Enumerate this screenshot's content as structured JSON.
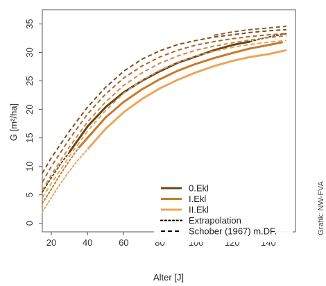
{
  "chart_data": {
    "type": "line",
    "xlabel": "Alter [J]",
    "ylabel": "G [m²/ha]",
    "xlim": [
      15,
      155
    ],
    "ylim": [
      -1.5,
      37.5
    ],
    "xticks": [
      20,
      40,
      60,
      80,
      100,
      120,
      140
    ],
    "yticks": [
      0,
      5,
      10,
      15,
      20,
      25,
      30,
      35
    ],
    "grid": false,
    "legend_position": "bottom-right",
    "credit": "Grafik: NW-FVA",
    "legend": [
      {
        "label": "0.Ekl",
        "style": "solid",
        "color": "#6b4515"
      },
      {
        "label": "I.Ekl",
        "style": "solid",
        "color": "#c87a2a"
      },
      {
        "label": "II.Ekl",
        "style": "solid",
        "color": "#eea55a"
      },
      {
        "label": "Extrapolation",
        "style": "dotted",
        "color": "#000000"
      },
      {
        "label": "Schober (1967) m.DF.",
        "style": "dashed",
        "color": "#000000"
      }
    ],
    "series": [
      {
        "name": "0.Ekl",
        "style": "solid",
        "color": "#6b4515",
        "x": [
          30,
          40,
          50,
          60,
          70,
          80,
          90,
          100,
          110,
          120,
          130
        ],
        "y": [
          12.5,
          17.0,
          20.4,
          23.0,
          25.0,
          26.7,
          28.2,
          29.3,
          30.4,
          31.3,
          31.9
        ]
      },
      {
        "name": "0.Ekl",
        "style": "dotted",
        "color": "#6b4515",
        "x": [
          15,
          20,
          25,
          30
        ],
        "y": [
          5.5,
          8.0,
          10.4,
          12.5
        ]
      },
      {
        "name": "0.Ekl",
        "style": "dotted",
        "color": "#6b4515",
        "x": [
          130,
          140,
          150
        ],
        "y": [
          31.9,
          32.7,
          33.3
        ]
      },
      {
        "name": "I.Ekl",
        "style": "solid",
        "color": "#c87a2a",
        "x": [
          35,
          40,
          50,
          60,
          70,
          80,
          90,
          100,
          110,
          120,
          130,
          140,
          148
        ],
        "y": [
          13.2,
          15.0,
          18.6,
          21.3,
          23.5,
          25.3,
          26.8,
          28.0,
          29.0,
          29.9,
          30.7,
          31.3,
          31.8
        ]
      },
      {
        "name": "I.Ekl",
        "style": "dotted",
        "color": "#c87a2a",
        "x": [
          15,
          20,
          25,
          30,
          35
        ],
        "y": [
          3.5,
          6.0,
          8.6,
          11.0,
          13.2
        ]
      },
      {
        "name": "II.Ekl",
        "style": "solid",
        "color": "#eea55a",
        "x": [
          40,
          50,
          60,
          70,
          80,
          90,
          100,
          110,
          120,
          130,
          140,
          150
        ],
        "y": [
          13.0,
          16.6,
          19.5,
          21.8,
          23.7,
          25.2,
          26.5,
          27.6,
          28.5,
          29.2,
          29.7,
          30.4
        ]
      },
      {
        "name": "II.Ekl",
        "style": "dotted",
        "color": "#eea55a",
        "x": [
          15,
          20,
          25,
          30,
          35,
          40
        ],
        "y": [
          2.0,
          4.5,
          7.0,
          9.2,
          11.2,
          13.0
        ]
      },
      {
        "name": "Schober (1967) m.DF.",
        "style": "dashed",
        "color": "#7a5020",
        "x": [
          15,
          20,
          30,
          40,
          50,
          60,
          70,
          80,
          90,
          100,
          110,
          120,
          130,
          140,
          150
        ],
        "y": [
          8.8,
          11.5,
          16.2,
          20.4,
          23.9,
          26.7,
          28.8,
          30.3,
          31.4,
          32.1,
          32.7,
          33.1,
          33.5,
          33.8,
          34.0
        ]
      },
      {
        "name": "Schober (1967) m.DF.",
        "style": "dashed",
        "color": "#a06a30",
        "x": [
          15,
          20,
          30,
          40,
          50,
          60,
          70,
          80,
          90,
          100,
          110,
          120,
          130,
          140,
          150
        ],
        "y": [
          7.2,
          10.0,
          14.8,
          19.2,
          22.7,
          25.5,
          27.6,
          29.2,
          30.4,
          31.3,
          31.9,
          32.4,
          32.8,
          33.1,
          33.3
        ]
      },
      {
        "name": "Schober (1967) m.DF.",
        "style": "dashed",
        "color": "#c98a45",
        "x": [
          15,
          20,
          30,
          40,
          50,
          60,
          70,
          80,
          90,
          100,
          110,
          120,
          130,
          140,
          150
        ],
        "y": [
          5.8,
          8.5,
          13.4,
          17.8,
          21.3,
          24.2,
          26.4,
          28.1,
          29.4,
          30.4,
          31.1,
          31.7,
          32.2,
          32.6,
          32.9
        ]
      },
      {
        "name": "Schober (1967) m.DF.",
        "style": "dashed",
        "color": "#e0a565",
        "x": [
          15,
          20,
          30,
          40,
          50,
          60,
          70,
          80,
          90,
          100,
          110,
          120,
          130,
          140,
          150
        ],
        "y": [
          4.5,
          7.0,
          11.8,
          16.2,
          19.8,
          22.8,
          25.1,
          26.9,
          28.3,
          29.4,
          30.2,
          30.9,
          31.4,
          31.8,
          32.1
        ]
      },
      {
        "name": "Schober (1967) m.DF.",
        "style": "dashed",
        "color": "#8a5a28",
        "x": [
          110,
          120,
          130,
          140,
          150
        ],
        "y": [
          33.0,
          33.6,
          34.0,
          34.3,
          34.6
        ]
      }
    ]
  }
}
